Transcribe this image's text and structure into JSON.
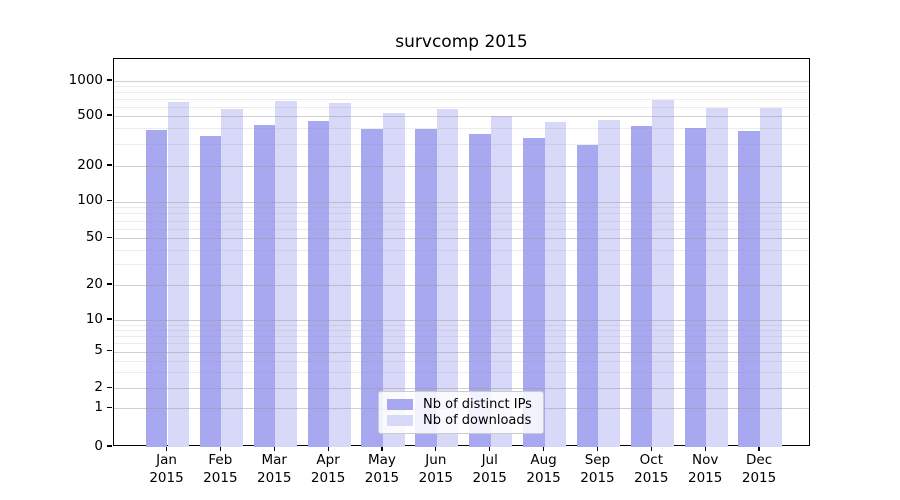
{
  "chart_data": {
    "type": "bar",
    "title": "survcomp 2015",
    "categories": [
      "Jan",
      "Feb",
      "Mar",
      "Apr",
      "May",
      "Jun",
      "Jul",
      "Aug",
      "Sep",
      "Oct",
      "Nov",
      "Dec"
    ],
    "category_year": "2015",
    "series": [
      {
        "name": "Nb of distinct IPs",
        "color": "#a8a8f0",
        "values": [
          387,
          346,
          424,
          456,
          392,
          396,
          357,
          332,
          296,
          416,
          403,
          378
        ]
      },
      {
        "name": "Nb of downloads",
        "color": "#d8d8f8",
        "values": [
          660,
          578,
          673,
          643,
          528,
          578,
          497,
          450,
          462,
          687,
          586,
          590
        ]
      }
    ],
    "yscale": "symlog",
    "yticks": [
      0,
      1,
      2,
      5,
      10,
      20,
      50,
      100,
      200,
      500,
      1000
    ],
    "ylim": [
      0,
      1500
    ],
    "xlabel": "",
    "ylabel": "",
    "grid": "horizontal major+minor",
    "legend_position": "inside lower-center",
    "grid_color": "#b4b4b4",
    "text_color": "#000000"
  }
}
